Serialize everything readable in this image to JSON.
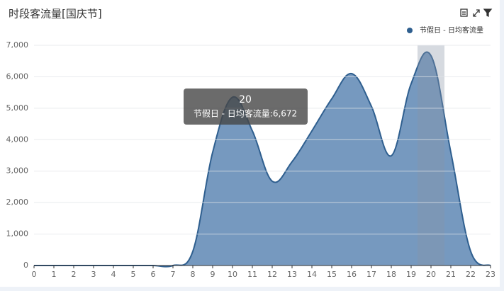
{
  "chart_data": {
    "type": "area",
    "title": "时段客流量[国庆节]",
    "x": [
      0,
      1,
      2,
      3,
      4,
      5,
      6,
      7,
      8,
      9,
      10,
      11,
      12,
      13,
      14,
      15,
      16,
      17,
      18,
      19,
      20,
      21,
      22,
      23
    ],
    "series": [
      {
        "name": "节假日 - 日均客流量",
        "color": "#2f5f8f",
        "fill": "#6f94bc",
        "values": [
          0,
          0,
          0,
          0,
          0,
          0,
          0,
          0,
          450,
          3600,
          5350,
          4280,
          2680,
          3300,
          4280,
          5300,
          6100,
          5060,
          3490,
          5780,
          6672,
          3600,
          450,
          0
        ]
      }
    ],
    "xlim": [
      0,
      23
    ],
    "xticks": [
      0,
      1,
      2,
      3,
      4,
      5,
      6,
      7,
      8,
      9,
      10,
      11,
      12,
      13,
      14,
      15,
      16,
      17,
      18,
      19,
      20,
      21,
      22,
      23
    ],
    "ylim": [
      0,
      7000
    ],
    "yticks": [
      0,
      {
        "value": 1000,
        "label": "1,000"
      },
      {
        "value": 2000,
        "label": "2,000"
      },
      {
        "value": 3000,
        "label": "3,000"
      },
      {
        "value": 4000,
        "label": "4,000"
      },
      {
        "value": 5000,
        "label": "5,000"
      },
      {
        "value": 6000,
        "label": "6,000"
      },
      {
        "value": 7000,
        "label": "7,000"
      }
    ],
    "grid": true,
    "legend": "top-right",
    "tooltip": {
      "x": 20,
      "text": "节假日 - 日均客流量:6,672"
    }
  }
}
